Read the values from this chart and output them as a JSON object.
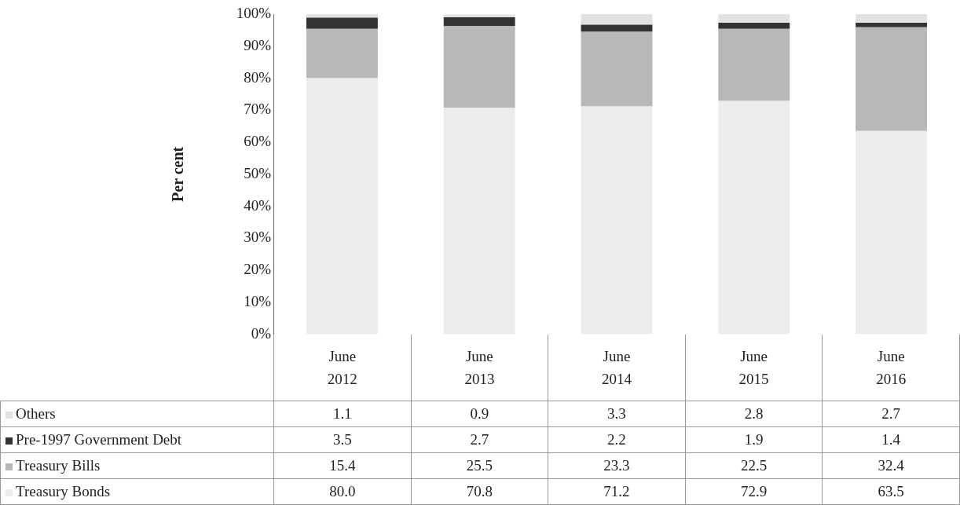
{
  "chart_data": {
    "type": "bar",
    "stacked": true,
    "ylabel": "Per cent",
    "categories": [
      "June 2012",
      "June 2013",
      "June 2014",
      "June 2015",
      "June 2016"
    ],
    "series": [
      {
        "name": "Treasury Bonds",
        "color": "#ececec",
        "values": [
          80.0,
          70.8,
          71.2,
          72.9,
          63.5
        ],
        "value_labels": [
          "80.0",
          "70.8",
          "71.2",
          "72.9",
          "63.5"
        ]
      },
      {
        "name": "Treasury Bills",
        "color": "#b8b8b8",
        "values": [
          15.4,
          25.5,
          23.3,
          22.5,
          32.4
        ],
        "value_labels": [
          "15.4",
          "25.5",
          "23.3",
          "22.5",
          "32.4"
        ]
      },
      {
        "name": "Pre-1997 Government Debt",
        "color": "#333333",
        "values": [
          3.5,
          2.7,
          2.2,
          1.9,
          1.4
        ],
        "value_labels": [
          "3.5",
          "2.7",
          "2.2",
          "1.9",
          "1.4"
        ]
      },
      {
        "name": "Others",
        "color": "#e2e2e2",
        "values": [
          1.1,
          0.9,
          3.3,
          2.8,
          2.7
        ],
        "value_labels": [
          "1.1",
          "0.9",
          "3.3",
          "2.8",
          "2.7"
        ]
      }
    ],
    "ylim": [
      0,
      100
    ],
    "yticks": [
      {
        "value": 0,
        "label": "0%"
      },
      {
        "value": 10,
        "label": "10%"
      },
      {
        "value": 20,
        "label": "20%"
      },
      {
        "value": 30,
        "label": "30%"
      },
      {
        "value": 40,
        "label": "40%"
      },
      {
        "value": 50,
        "label": "50%"
      },
      {
        "value": 60,
        "label": "60%"
      },
      {
        "value": 70,
        "label": "70%"
      },
      {
        "value": 80,
        "label": "80%"
      },
      {
        "value": 90,
        "label": "90%"
      },
      {
        "value": 100,
        "label": "100%"
      }
    ],
    "grid": false,
    "legend": "bottom"
  }
}
